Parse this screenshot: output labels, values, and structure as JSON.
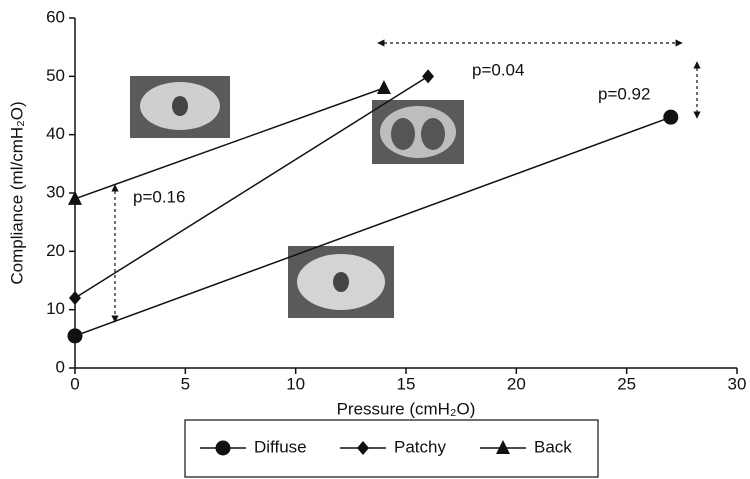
{
  "chart_data": {
    "type": "line",
    "xlabel": "Pressure (cmH₂O)",
    "ylabel": "Compliance (ml/cmH₂O)",
    "xlim": [
      0,
      30
    ],
    "xticks": [
      0,
      5,
      10,
      15,
      20,
      25,
      30
    ],
    "ylim": [
      0,
      60
    ],
    "yticks": [
      0,
      10,
      20,
      30,
      40,
      50,
      60
    ],
    "series": [
      {
        "name": "Diffuse",
        "color": "#111111",
        "marker": "circle",
        "x": [
          0,
          27
        ],
        "values": [
          5.5,
          43
        ]
      },
      {
        "name": "Patchy",
        "color": "#111111",
        "marker": "diamond",
        "x": [
          0,
          16
        ],
        "values": [
          12,
          50
        ]
      },
      {
        "name": "Back",
        "color": "#111111",
        "marker": "triangle",
        "x": [
          0,
          14
        ],
        "values": [
          29,
          48
        ]
      }
    ],
    "annotations": [
      "p=0.16",
      "p=0.04",
      "p=0.92"
    ]
  }
}
